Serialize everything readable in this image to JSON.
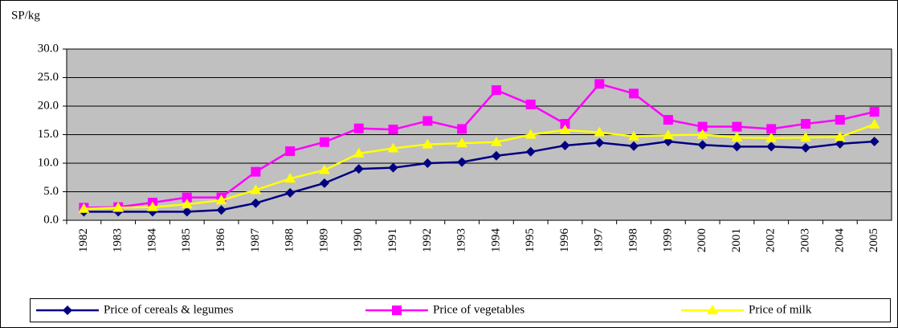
{
  "chart_data": {
    "type": "line",
    "y_label": "SP/kg",
    "categories": [
      "1982",
      "1983",
      "1984",
      "1985",
      "1986",
      "1987",
      "1988",
      "1989",
      "1990",
      "1991",
      "1992",
      "1993",
      "1994",
      "1995",
      "1996",
      "1997",
      "1998",
      "1999",
      "2000",
      "2001",
      "2002",
      "2003",
      "2004",
      "2005"
    ],
    "series": [
      {
        "name": "Price of cereals & legumes",
        "color": "#000080",
        "marker": "diamond",
        "values": [
          1.5,
          1.5,
          1.5,
          1.5,
          1.8,
          3.0,
          4.8,
          6.5,
          9.0,
          9.2,
          10.0,
          10.2,
          11.3,
          12.0,
          13.1,
          13.6,
          13.0,
          13.8,
          13.2,
          12.9,
          12.9,
          12.7,
          13.4,
          13.8
        ]
      },
      {
        "name": "Price of vegetables",
        "color": "#ff00ff",
        "marker": "square",
        "values": [
          2.2,
          2.3,
          3.1,
          4.0,
          4.0,
          8.5,
          12.1,
          13.7,
          16.1,
          15.9,
          17.4,
          16.0,
          22.8,
          20.3,
          16.9,
          23.9,
          22.2,
          17.6,
          16.4,
          16.4,
          16.0,
          16.9,
          17.6,
          19.0
        ]
      },
      {
        "name": "Price of milk",
        "color": "#ffff00",
        "marker": "triangle",
        "values": [
          2.0,
          2.2,
          2.3,
          2.8,
          3.5,
          5.3,
          7.3,
          8.8,
          11.7,
          12.6,
          13.3,
          13.5,
          13.7,
          15.0,
          15.8,
          15.4,
          14.7,
          14.9,
          15.0,
          14.5,
          14.4,
          14.5,
          14.6,
          16.8
        ]
      }
    ],
    "ylim": [
      0,
      30
    ],
    "yticks": [
      {
        "value": 0,
        "label": "0.0"
      },
      {
        "value": 5,
        "label": "5.0"
      },
      {
        "value": 10,
        "label": "10.0"
      },
      {
        "value": 15,
        "label": "15.0"
      },
      {
        "value": 20,
        "label": "20.0"
      },
      {
        "value": 25,
        "label": "25.0"
      },
      {
        "value": 30,
        "label": "30.0"
      }
    ],
    "grid": true,
    "plot_background": "#c0c0c0",
    "legend": "bottom"
  }
}
